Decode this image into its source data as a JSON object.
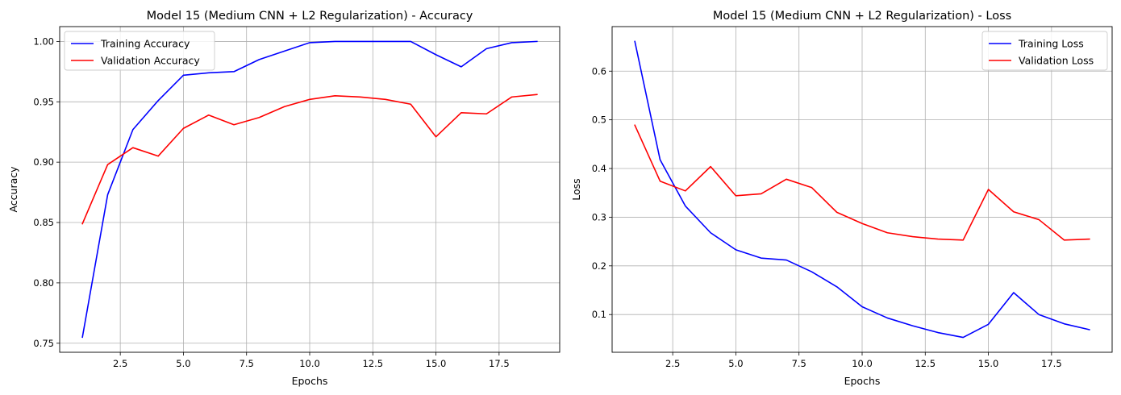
{
  "chart_data": [
    {
      "type": "line",
      "title": "Model 15 (Medium CNN + L2 Regularization) - Accuracy",
      "xlabel": "Epochs",
      "ylabel": "Accuracy",
      "x": [
        1,
        2,
        3,
        4,
        5,
        6,
        7,
        8,
        9,
        10,
        11,
        12,
        13,
        14,
        15,
        16,
        17,
        18,
        19
      ],
      "xlim": [
        0.1,
        19.9
      ],
      "ylim": [
        0.7425,
        1.0123
      ],
      "xticks": [
        2.5,
        5.0,
        7.5,
        10.0,
        12.5,
        15.0,
        17.5
      ],
      "xtick_labels": [
        "2.5",
        "5.0",
        "7.5",
        "10.0",
        "12.5",
        "15.0",
        "17.5"
      ],
      "yticks": [
        0.75,
        0.8,
        0.85,
        0.9,
        0.95,
        1.0
      ],
      "ytick_labels": [
        "0.75",
        "0.80",
        "0.85",
        "0.90",
        "0.95",
        "1.00"
      ],
      "grid": true,
      "legend_position": "upper-left",
      "series": [
        {
          "name": "Training Accuracy",
          "color": "#0000ff",
          "values": [
            0.755,
            0.873,
            0.927,
            0.951,
            0.972,
            0.974,
            0.975,
            0.985,
            0.992,
            0.999,
            1.0,
            1.0,
            1.0,
            1.0,
            0.989,
            0.979,
            0.994,
            0.999,
            1.0
          ]
        },
        {
          "name": "Validation Accuracy",
          "color": "#ff0000",
          "values": [
            0.849,
            0.898,
            0.912,
            0.905,
            0.928,
            0.939,
            0.931,
            0.937,
            0.946,
            0.952,
            0.955,
            0.954,
            0.952,
            0.948,
            0.921,
            0.941,
            0.94,
            0.954,
            0.956
          ]
        }
      ]
    },
    {
      "type": "line",
      "title": "Model 15 (Medium CNN + L2 Regularization) - Loss",
      "xlabel": "Epochs",
      "ylabel": "Loss",
      "x": [
        1,
        2,
        3,
        4,
        5,
        6,
        7,
        8,
        9,
        10,
        11,
        12,
        13,
        14,
        15,
        16,
        17,
        18,
        19
      ],
      "xlim": [
        0.1,
        19.9
      ],
      "ylim": [
        0.0225,
        0.6915
      ],
      "xticks": [
        2.5,
        5.0,
        7.5,
        10.0,
        12.5,
        15.0,
        17.5
      ],
      "xtick_labels": [
        "2.5",
        "5.0",
        "7.5",
        "10.0",
        "12.5",
        "15.0",
        "17.5"
      ],
      "yticks": [
        0.1,
        0.2,
        0.3,
        0.4,
        0.5,
        0.6
      ],
      "ytick_labels": [
        "0.1",
        "0.2",
        "0.3",
        "0.4",
        "0.5",
        "0.6"
      ],
      "grid": true,
      "legend_position": "upper-right",
      "series": [
        {
          "name": "Training Loss",
          "color": "#0000ff",
          "values": [
            0.661,
            0.418,
            0.323,
            0.268,
            0.233,
            0.216,
            0.212,
            0.188,
            0.157,
            0.116,
            0.093,
            0.077,
            0.063,
            0.053,
            0.08,
            0.145,
            0.1,
            0.081,
            0.069
          ]
        },
        {
          "name": "Validation Loss",
          "color": "#ff0000",
          "values": [
            0.489,
            0.374,
            0.354,
            0.404,
            0.344,
            0.348,
            0.378,
            0.361,
            0.31,
            0.287,
            0.268,
            0.26,
            0.255,
            0.253,
            0.357,
            0.311,
            0.295,
            0.253,
            0.255
          ]
        }
      ]
    }
  ]
}
